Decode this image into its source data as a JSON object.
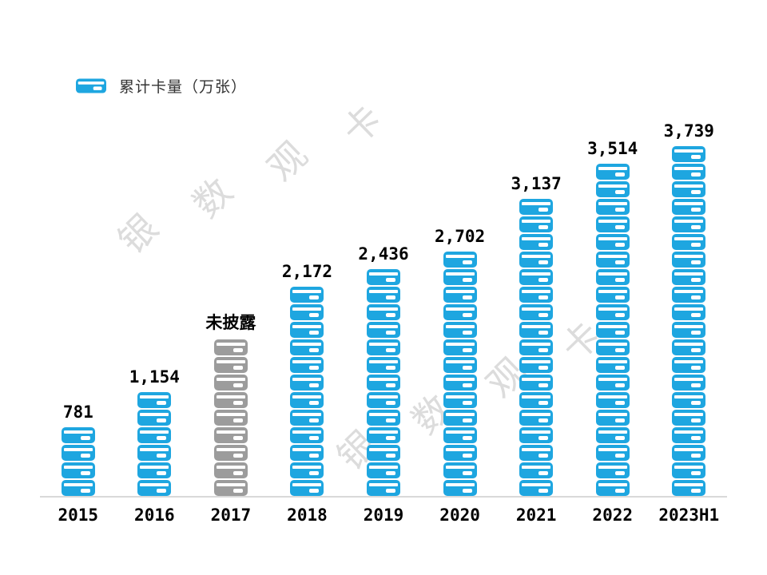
{
  "legend": {
    "label": "累计卡量（万张）",
    "icon": "credit-card-icon"
  },
  "watermark": {
    "text": "银数观卡"
  },
  "colors": {
    "bar": "#1EA6E0",
    "undisclosed": "#9C9C9C",
    "watermark": "#DCDCDC",
    "axis": "#D9D9D9",
    "label": "#000000",
    "legend_text": "#333333"
  },
  "chart_data": {
    "type": "bar",
    "subtype": "pictograph-stacked-card-icons",
    "title": "累计卡量（万张）",
    "categories": [
      "2015",
      "2016",
      "2017",
      "2018",
      "2019",
      "2020",
      "2021",
      "2022",
      "2023H1"
    ],
    "values": [
      781,
      1154,
      null,
      2172,
      2436,
      2702,
      3137,
      3514,
      3739
    ],
    "value_labels": [
      "781",
      "1,154",
      "未披露",
      "2,172",
      "2,436",
      "2,702",
      "3,137",
      "3,514",
      "3,739"
    ],
    "undisclosed_index": 2,
    "undisclosed_label": "未披露",
    "icon": "credit-card",
    "unit_per_icon": 187,
    "undisclosed_icon_count": 9,
    "xlabel": "",
    "ylabel": "累计卡量（万张）",
    "ylim": [
      0,
      4000
    ],
    "grid": false,
    "legend_position": "top-left"
  }
}
